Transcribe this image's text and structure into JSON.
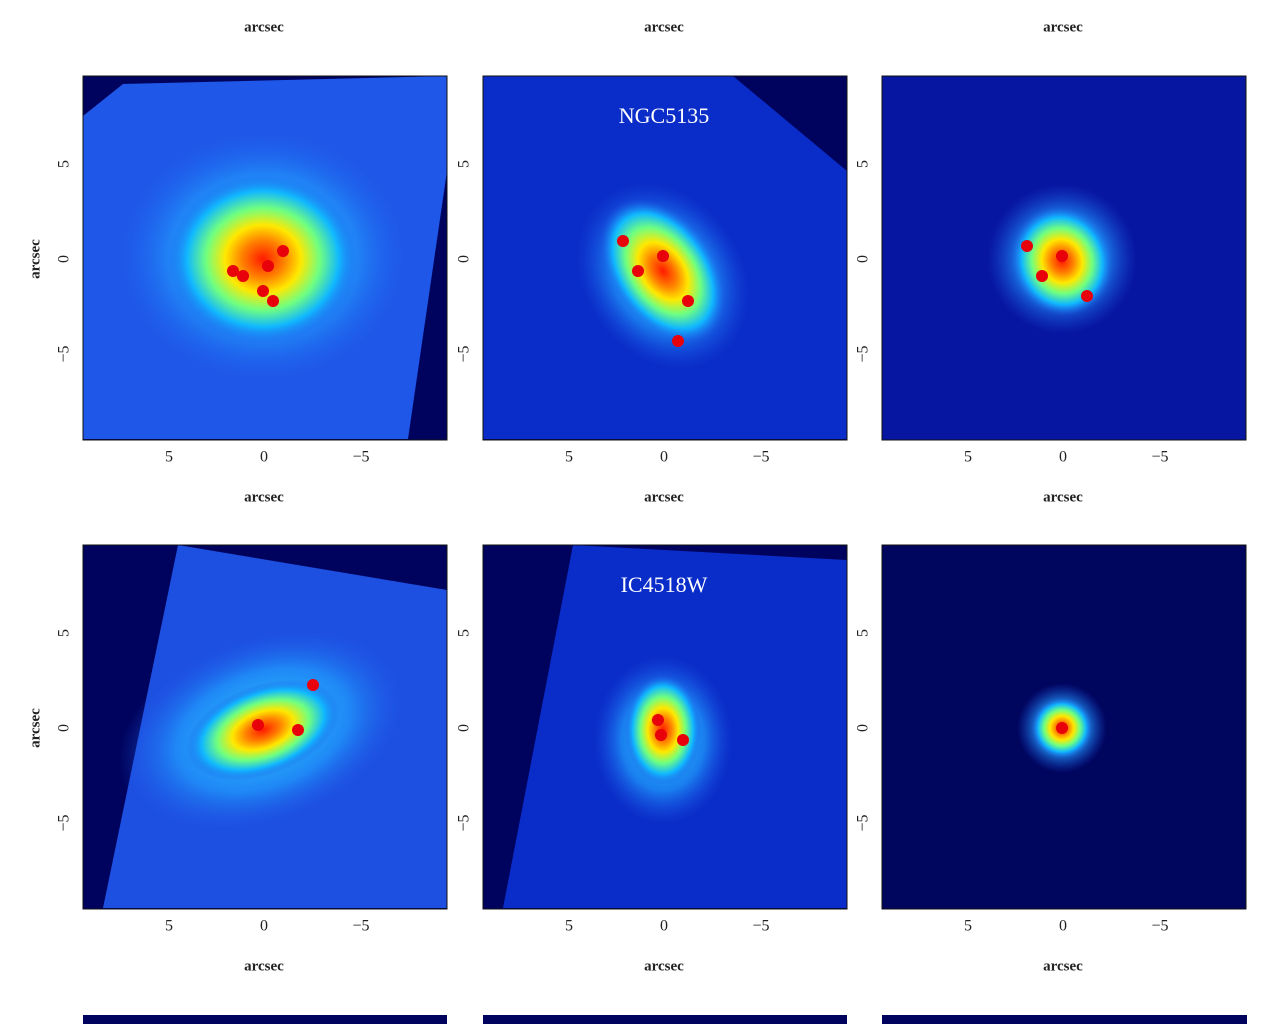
{
  "top_axis_labels": [
    "arcsec",
    "arcsec",
    "arcsec"
  ],
  "rows": [
    {
      "y_label": "arcsec",
      "panels": [
        {
          "x_ticks": [
            "5",
            "0",
            "−5"
          ],
          "y_ticks": [
            "5",
            "0",
            "−5"
          ],
          "x_label": "arcsec"
        },
        {
          "name": "NGC5135",
          "x_ticks": [
            "5",
            "0",
            "−5"
          ],
          "y_ticks": [
            "5",
            "0",
            "−5"
          ],
          "x_label": "arcsec"
        },
        {
          "x_ticks": [
            "5",
            "0",
            "−5"
          ],
          "y_ticks": [
            "5",
            "0",
            "−5"
          ],
          "x_label": "arcsec"
        }
      ]
    },
    {
      "y_label": "arcsec",
      "panels": [
        {
          "x_ticks": [
            "5",
            "0",
            "−5"
          ],
          "y_ticks": [
            "5",
            "0",
            "−5"
          ],
          "x_label": "arcsec"
        },
        {
          "name": "IC4518W",
          "x_ticks": [
            "5",
            "0",
            "−5"
          ],
          "y_ticks": [
            "5",
            "0",
            "−5"
          ],
          "x_label": "arcsec"
        },
        {
          "x_ticks": [
            "5",
            "0",
            "−5"
          ],
          "y_ticks": [
            "5",
            "0",
            "−5"
          ],
          "x_label": "arcsec"
        }
      ]
    }
  ]
}
